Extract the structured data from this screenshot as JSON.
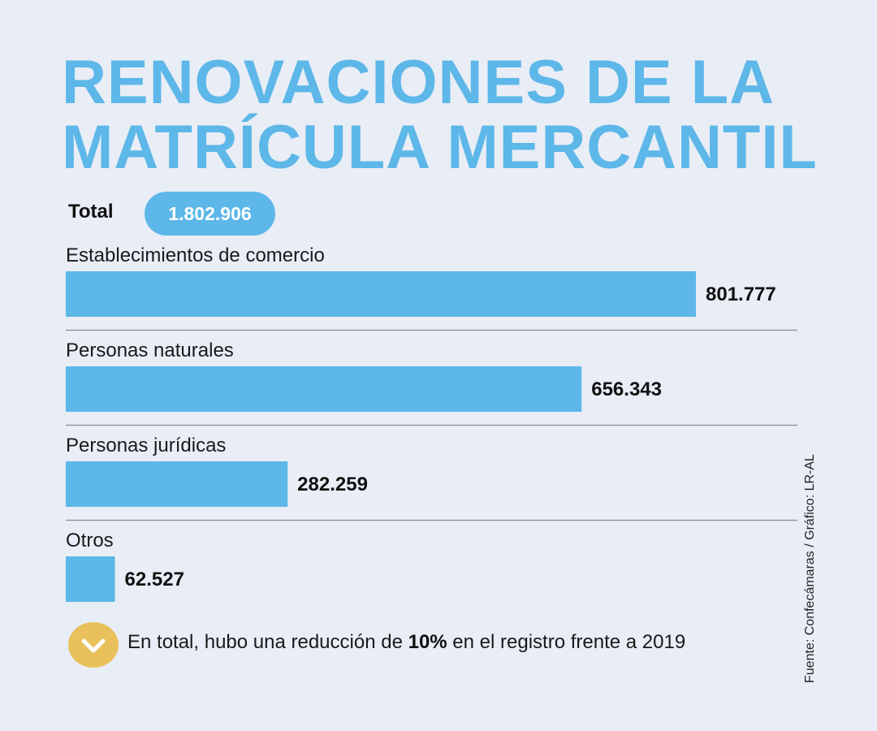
{
  "title": {
    "line1": "RENOVACIONES DE LA",
    "line2": "MATRÍCULA MERCANTIL"
  },
  "total": {
    "label": "Total",
    "value": "1.802.906"
  },
  "chart_data": {
    "type": "bar",
    "orientation": "horizontal",
    "categories": [
      "Establecimientos de comercio",
      "Personas naturales",
      "Personas jurídicas",
      "Otros"
    ],
    "values": [
      801777,
      656343,
      282259,
      62527
    ],
    "value_labels": [
      "801.777",
      "656.343",
      "282.259",
      "62.527"
    ],
    "grid": false
  },
  "note": {
    "before": "En total, hubo una reducción de ",
    "highlight": "10%",
    "after": " en el registro frente a 2019"
  },
  "source": "Fuente: Confecámaras / Gráfico: LR-AL",
  "colors": {
    "bar": "#5db7e8",
    "title": "#5db7e8",
    "pill": "#5db7e8",
    "note_icon": "#e8c15a",
    "background": "#e9edf6",
    "separator": "#8c8c8c"
  },
  "icons": {
    "note_icon": "chevron-down-icon"
  }
}
